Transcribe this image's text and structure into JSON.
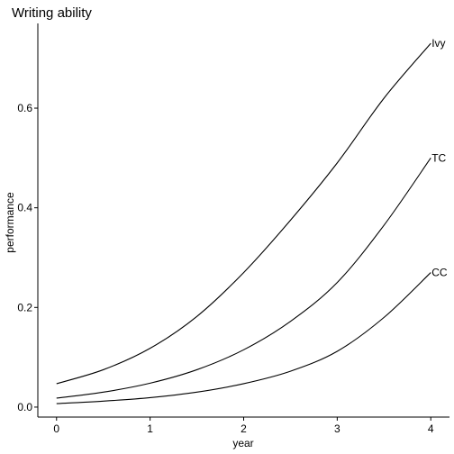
{
  "chart_data": {
    "type": "line",
    "title": "Writing ability",
    "xlabel": "year",
    "ylabel": "performance",
    "xlim": [
      -0.2,
      4.2
    ],
    "ylim": [
      -0.02,
      0.77
    ],
    "x_ticks": [
      0,
      1,
      2,
      3,
      4
    ],
    "x_tick_labels": [
      "0",
      "1",
      "2",
      "3",
      "4"
    ],
    "y_ticks": [
      0.0,
      0.2,
      0.4,
      0.6
    ],
    "y_tick_labels": [
      "0.0",
      "0.2",
      "0.4",
      "0.6"
    ],
    "grid": false,
    "legend": "none",
    "line_color": "#000000",
    "series": [
      {
        "name": "Ivy",
        "x": [
          0,
          0.5,
          1,
          1.5,
          2,
          2.5,
          3,
          3.5,
          4
        ],
        "values": [
          0.047,
          0.075,
          0.118,
          0.182,
          0.27,
          0.375,
          0.49,
          0.62,
          0.73
        ]
      },
      {
        "name": "TC",
        "x": [
          0,
          0.5,
          1,
          1.5,
          2,
          2.5,
          3,
          3.5,
          4
        ],
        "values": [
          0.018,
          0.03,
          0.048,
          0.075,
          0.115,
          0.172,
          0.25,
          0.365,
          0.5
        ]
      },
      {
        "name": "CC",
        "x": [
          0,
          0.5,
          1,
          1.5,
          2,
          2.5,
          3,
          3.5,
          4
        ],
        "values": [
          0.007,
          0.012,
          0.019,
          0.03,
          0.047,
          0.072,
          0.112,
          0.18,
          0.27
        ]
      }
    ]
  }
}
